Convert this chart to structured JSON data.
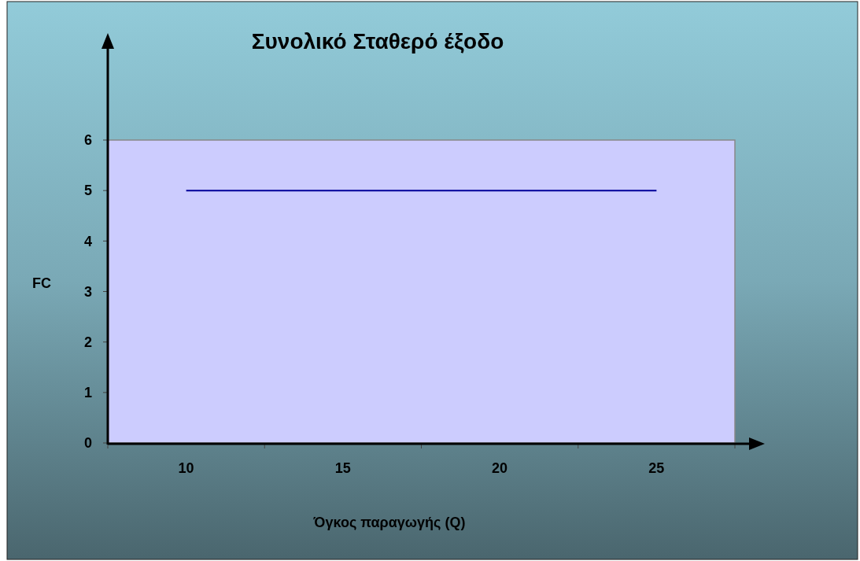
{
  "chart_data": {
    "type": "line",
    "title": "Συνολικό Σταθερό έξοδο",
    "xlabel": "Όγκος παραγωγής (Q)",
    "ylabel": "FC",
    "categories": [
      "10",
      "15",
      "20",
      "25"
    ],
    "series": [
      {
        "color": "#000099",
        "values": [
          5,
          5,
          5,
          5
        ]
      }
    ],
    "ylim": [
      0,
      6
    ],
    "yticks": [
      0,
      1,
      2,
      3,
      4,
      5,
      6
    ],
    "grid": false,
    "marker": "none",
    "line_style": "solid"
  }
}
